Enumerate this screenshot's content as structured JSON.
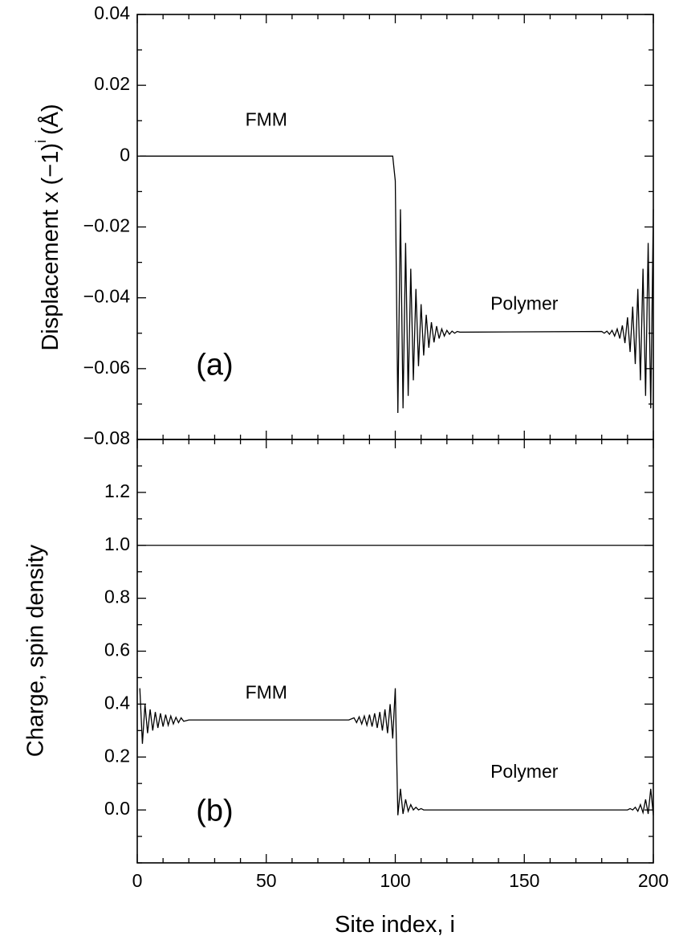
{
  "chart_data": [
    {
      "type": "line",
      "panel": "a",
      "title": "",
      "xlabel": "",
      "ylabel": "Displacement x (−1)",
      "ylabel_superscript": "i",
      "ylabel_unit": "(Å)",
      "xlim": [
        0,
        200
      ],
      "ylim": [
        -0.08,
        0.04
      ],
      "y_ticks": [
        0.04,
        0.02,
        0,
        -0.02,
        -0.04,
        -0.06,
        -0.08
      ],
      "y_tick_labels": [
        "0.04",
        "0.02",
        "0",
        "−0.02",
        "−0.04",
        "−0.06",
        "−0.08"
      ],
      "grid": false,
      "annotations": [
        {
          "text": "FMM",
          "x": 50,
          "y": 0.01
        },
        {
          "text": "Polymer",
          "x": 150,
          "y": -0.042
        },
        {
          "text": "(a)",
          "x": 30,
          "y": -0.0595
        }
      ],
      "series": [
        {
          "description": "0 for sites 1-99, steep drop at site 100, damped alternation about -0.0497 near both polymer ends",
          "flat_fmm_value": 0,
          "interface_site": 100,
          "polymer_bulk": -0.0497,
          "x": [
            1,
            99,
            100,
            101,
            102,
            103,
            104,
            105,
            106,
            107,
            108,
            109,
            110,
            111,
            112,
            113,
            114,
            115,
            116,
            117,
            118,
            119,
            120,
            121,
            122,
            123,
            124,
            125,
            180,
            181,
            182,
            183,
            184,
            185,
            186,
            187,
            188,
            189,
            190,
            191,
            192,
            193,
            194,
            195,
            196,
            197,
            198,
            199,
            200
          ],
          "y": [
            0,
            0,
            -0.007,
            -0.0725,
            -0.015,
            -0.0712,
            -0.0245,
            -0.0677,
            -0.0318,
            -0.0633,
            -0.0375,
            -0.0593,
            -0.0418,
            -0.0563,
            -0.0448,
            -0.0541,
            -0.0469,
            -0.0526,
            -0.048,
            -0.0515,
            -0.0488,
            -0.0508,
            -0.0492,
            -0.0503,
            -0.0494,
            -0.05,
            -0.0495,
            -0.0497,
            -0.0495,
            -0.05,
            -0.0494,
            -0.0503,
            -0.0492,
            -0.0508,
            -0.0488,
            -0.0515,
            -0.0478,
            -0.0528,
            -0.0455,
            -0.0553,
            -0.0425,
            -0.0587,
            -0.0375,
            -0.0633,
            -0.0318,
            -0.0677,
            -0.0245,
            -0.0712,
            -0.015
          ]
        }
      ]
    },
    {
      "type": "line",
      "panel": "b",
      "title": "",
      "xlabel": "Site index, i",
      "ylabel": "Charge, spin density",
      "xlim": [
        0,
        200
      ],
      "ylim": [
        -0.2,
        1.4
      ],
      "x_ticks": [
        0,
        50,
        100,
        150,
        200
      ],
      "x_tick_labels": [
        "0",
        "50",
        "100",
        "150",
        "200"
      ],
      "y_ticks": [
        1.2,
        1.0,
        0.8,
        0.6,
        0.4,
        0.2,
        0.0
      ],
      "y_tick_labels": [
        "1.2",
        "1.0",
        "0.8",
        "0.6",
        "0.4",
        "0.2",
        "0.0"
      ],
      "grid": false,
      "annotations": [
        {
          "text": "FMM",
          "x": 50,
          "y": 0.44
        },
        {
          "text": "Polymer",
          "x": 150,
          "y": 0.14
        },
        {
          "text": "(b)",
          "x": 30,
          "y": -0.01
        }
      ],
      "series": [
        {
          "description": "charge density, constant 1.0",
          "x": [
            0,
            200
          ],
          "y": [
            1.0,
            1.0
          ]
        },
        {
          "description": "spin density: ~0.34 with alternation in FMM (sites 1-100), ~0 in polymer (sites 101-200)",
          "fmm_bulk": 0.34,
          "x": [
            1,
            2,
            3,
            4,
            5,
            6,
            7,
            8,
            9,
            10,
            11,
            12,
            13,
            14,
            15,
            16,
            17,
            18,
            20,
            50,
            82,
            84,
            85,
            86,
            87,
            88,
            89,
            90,
            91,
            92,
            93,
            94,
            95,
            96,
            97,
            98,
            99,
            100,
            101,
            102,
            103,
            104,
            105,
            106,
            107,
            108,
            109,
            110,
            111,
            112,
            190,
            191,
            192,
            193,
            194,
            195,
            196,
            197,
            198,
            199,
            200
          ],
          "y": [
            0.46,
            0.25,
            0.4,
            0.29,
            0.38,
            0.3,
            0.37,
            0.31,
            0.365,
            0.315,
            0.36,
            0.32,
            0.355,
            0.325,
            0.35,
            0.33,
            0.348,
            0.335,
            0.34,
            0.34,
            0.34,
            0.348,
            0.33,
            0.352,
            0.325,
            0.355,
            0.32,
            0.36,
            0.315,
            0.365,
            0.31,
            0.37,
            0.3,
            0.38,
            0.29,
            0.4,
            0.27,
            0.46,
            -0.02,
            0.08,
            -0.015,
            0.04,
            -0.005,
            0.02,
            0.0,
            0.01,
            0.0,
            0.005,
            0.0,
            0.0,
            0.0,
            0.005,
            0.0,
            0.01,
            -0.005,
            0.02,
            -0.01,
            0.04,
            -0.015,
            0.08,
            -0.02
          ]
        }
      ]
    }
  ]
}
